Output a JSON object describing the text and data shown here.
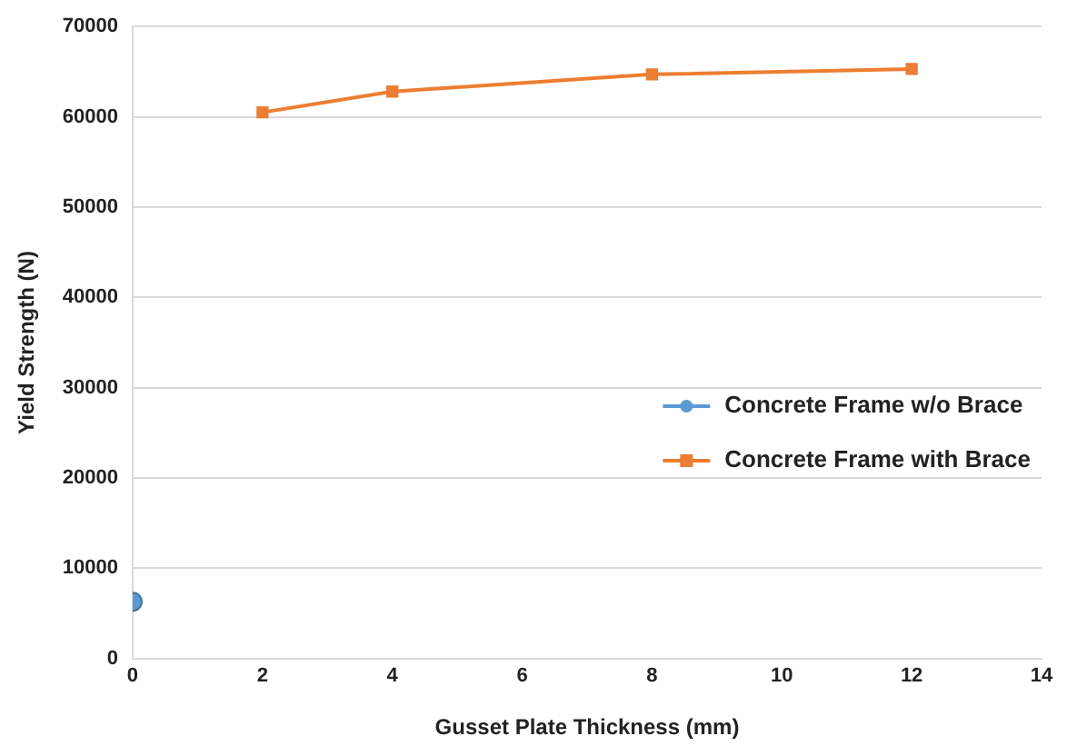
{
  "chart_data": {
    "type": "line",
    "xlabel": "Gusset Plate Thickness (mm)",
    "ylabel": "Yield Strength (N)",
    "xlim": [
      0,
      14
    ],
    "xticks": [
      0,
      2,
      4,
      6,
      8,
      10,
      12,
      14
    ],
    "ylim": [
      0,
      70000
    ],
    "yticks": [
      0,
      10000,
      20000,
      30000,
      40000,
      50000,
      60000,
      70000
    ],
    "grid": "y",
    "legend": "right",
    "series": [
      {
        "name": "Concrete Frame w/o Brace",
        "color": "#5b9bd5",
        "marker": "circle",
        "x": [
          0
        ],
        "values": [
          6300
        ]
      },
      {
        "name": "Concrete Frame with Brace",
        "color": "#ed7d31",
        "marker": "square",
        "x": [
          2,
          4,
          8,
          12
        ],
        "values": [
          60500,
          62800,
          64700,
          65300
        ]
      }
    ]
  }
}
